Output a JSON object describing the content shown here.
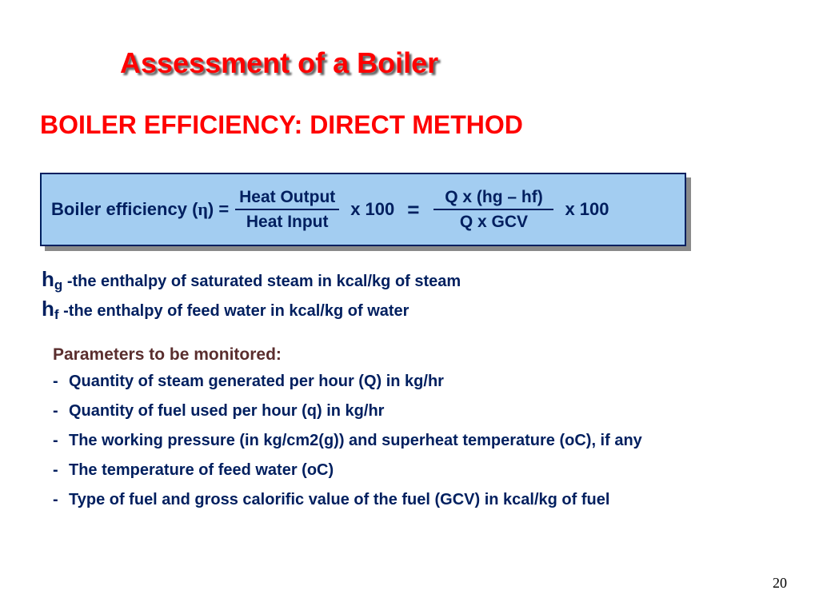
{
  "title": "Assessment of a Boiler",
  "subtitle": "BOILER EFFICIENCY: DIRECT  METHOD",
  "formula": {
    "lhs_prefix": "Boiler efficiency (",
    "lhs_eta": "η",
    "lhs_suffix": ") =",
    "frac1_num": "Heat Output",
    "frac1_den": "Heat Input",
    "x100a": "x 100",
    "eq": "=",
    "frac2_num": "Q x (hg – hf)",
    "frac2_den": "Q x GCV",
    "x100b": "x 100",
    "box_bg": "#a3cdf1",
    "box_border": "#001f5f",
    "shadow": "#8a8a8a",
    "text_color": "#001f5f"
  },
  "defs": {
    "hg_sym": "h",
    "hg_sub": "g",
    "hg_desc": " -the enthalpy of saturated steam in kcal/kg of steam",
    "hf_sym": "h",
    "hf_sub": "f",
    "hf_desc": " -the enthalpy of feed water in kcal/kg of water"
  },
  "params_header": "Parameters to be monitored:",
  "params": [
    "Quantity of steam generated per hour (Q) in kg/hr",
    "Quantity of fuel used per hour (q) in kg/hr",
    "The working pressure (in kg/cm2(g)) and superheat temperature (oC), if  any",
    "The temperature of feed water (oC)",
    "Type of fuel and gross calorific value of the fuel (GCV) in kcal/kg of  fuel"
  ],
  "page_number": "20",
  "colors": {
    "title": "#ff0000",
    "body": "#001f5f",
    "params_header": "#5a2e2e",
    "background": "#ffffff"
  }
}
